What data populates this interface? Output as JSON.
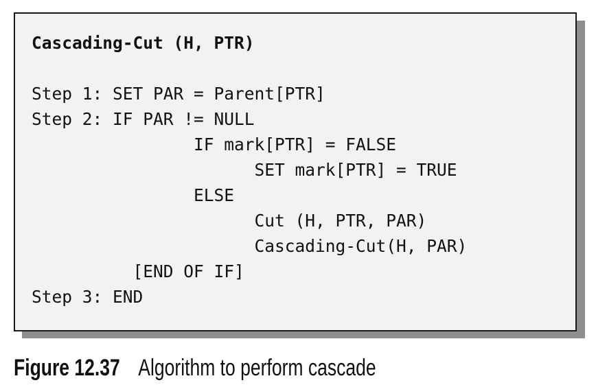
{
  "algorithm": {
    "title": "Cascading-Cut (H, PTR)",
    "lines": [
      "Step 1: SET PAR = Parent[PTR]",
      "Step 2: IF PAR != NULL",
      "                IF mark[PTR] = FALSE",
      "                      SET mark[PTR] = TRUE",
      "                ELSE",
      "                      Cut (H, PTR, PAR)",
      "                      Cascading-Cut(H, PAR)",
      "          [END OF IF]",
      "Step 3: END"
    ]
  },
  "caption": {
    "label": "Figure 12.37",
    "text": "Algorithm to perform cascade"
  }
}
